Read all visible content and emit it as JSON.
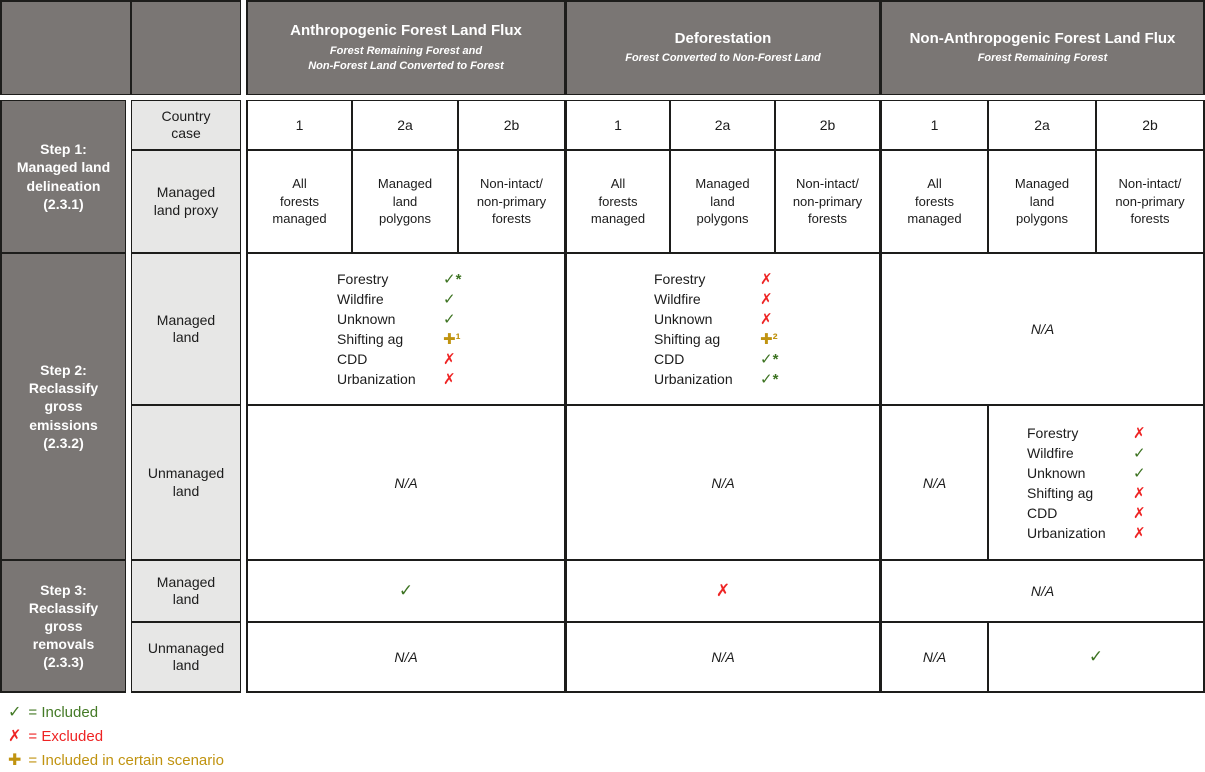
{
  "header": {
    "groups": [
      {
        "title": "Anthropogenic Forest Land Flux",
        "subtitle": "Forest Remaining Forest and\nNon-Forest Land Converted to Forest"
      },
      {
        "title": "Deforestation",
        "subtitle": "Forest Converted to Non-Forest Land"
      },
      {
        "title": "Non-Anthropogenic Forest Land Flux",
        "subtitle": "Forest Remaining Forest"
      }
    ]
  },
  "steps": [
    {
      "label": "Step 1:\nManaged land\ndelineation\n(2.3.1)"
    },
    {
      "label": "Step 2:\nReclassify\ngross\nemissions\n(2.3.2)"
    },
    {
      "label": "Step 3:\nReclassify\ngross\nremovals\n(2.3.3)"
    }
  ],
  "row_labels": {
    "country_case": "Country\ncase",
    "managed_land_proxy": "Managed\nland proxy",
    "managed_land": "Managed\nland",
    "unmanaged_land": "Unmanaged\nland"
  },
  "cases": [
    "1",
    "2a",
    "2b"
  ],
  "proxies": [
    "All\nforests\nmanaged",
    "Managed\nland\npolygons",
    "Non-intact/\nnon-primary\nforests"
  ],
  "step2": {
    "managed": {
      "anthropogenic": {
        "items": [
          {
            "label": "Forestry",
            "mark": "✓*",
            "color": "#3d7322"
          },
          {
            "label": "Wildfire",
            "mark": "✓",
            "color": "#3d7322"
          },
          {
            "label": "Unknown",
            "mark": "✓",
            "color": "#3d7322"
          },
          {
            "label": "Shifting ag",
            "mark": "✚¹",
            "color": "#c09310"
          },
          {
            "label": "CDD",
            "mark": "✗",
            "color": "#ee2424"
          },
          {
            "label": "Urbanization",
            "mark": "✗",
            "color": "#ee2424"
          }
        ]
      },
      "deforestation": {
        "items": [
          {
            "label": "Forestry",
            "mark": "✗",
            "color": "#ee2424"
          },
          {
            "label": "Wildfire",
            "mark": "✗",
            "color": "#ee2424"
          },
          {
            "label": "Unknown",
            "mark": "✗",
            "color": "#ee2424"
          },
          {
            "label": "Shifting ag",
            "mark": "✚²",
            "color": "#c09310"
          },
          {
            "label": "CDD",
            "mark": "✓*",
            "color": "#3d7322"
          },
          {
            "label": "Urbanization",
            "mark": "✓*",
            "color": "#3d7322"
          }
        ]
      },
      "non_anthropogenic": {
        "value": "N/A"
      }
    },
    "unmanaged": {
      "anthropogenic": {
        "value": "N/A"
      },
      "deforestation": {
        "value": "N/A"
      },
      "non_anthropogenic_case1": {
        "value": "N/A"
      },
      "non_anthropogenic_case2ab": {
        "items": [
          {
            "label": "Forestry",
            "mark": "✗",
            "color": "#ee2424"
          },
          {
            "label": "Wildfire",
            "mark": "✓",
            "color": "#3d7322"
          },
          {
            "label": "Unknown",
            "mark": "✓",
            "color": "#3d7322"
          },
          {
            "label": "Shifting ag",
            "mark": "✗",
            "color": "#ee2424"
          },
          {
            "label": "CDD",
            "mark": "✗",
            "color": "#ee2424"
          },
          {
            "label": "Urbanization",
            "mark": "✗",
            "color": "#ee2424"
          }
        ]
      }
    }
  },
  "step3": {
    "managed": {
      "anthropogenic": {
        "mark": "✓",
        "color": "#3d7322"
      },
      "deforestation": {
        "mark": "✗",
        "color": "#ee2424"
      },
      "non_anthropogenic": {
        "value": "N/A"
      }
    },
    "unmanaged": {
      "anthropogenic": {
        "value": "N/A"
      },
      "deforestation": {
        "value": "N/A"
      },
      "non_anthropogenic_case1": {
        "value": "N/A"
      },
      "non_anthropogenic_case2ab": {
        "mark": "✓",
        "color": "#3d7322"
      }
    }
  },
  "legend": {
    "items": [
      {
        "symbol": "✓",
        "label": "= Included",
        "color": "#447a26"
      },
      {
        "symbol": "✗",
        "label": "= Excluded",
        "color": "#ee2424"
      },
      {
        "symbol": "✚",
        "label": "= Included in certain scenario",
        "color": "#c09310"
      }
    ]
  },
  "colors": {
    "header_bg": "#7a7674",
    "label_bg": "#e7e7e6",
    "border": "#1d1d1b",
    "included_green": "#3d7322",
    "excluded_red": "#ee2424",
    "scenario_gold": "#c09310"
  }
}
